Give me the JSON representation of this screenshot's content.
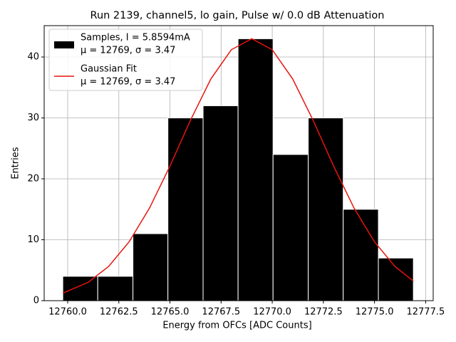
{
  "chart_data": {
    "type": "histogram",
    "title": "Run 2139, channel5, lo gain, Pulse w/ 0.0 dB Attenuation",
    "xlabel": "Energy from OFCs [ADC Counts]",
    "ylabel": "Entries",
    "bins": [
      12759.76,
      12761.47,
      12763.19,
      12764.9,
      12766.62,
      12768.33,
      12770.04,
      12771.76,
      12773.47,
      12775.19,
      12776.9
    ],
    "series": [
      {
        "name": [
          "Samples, I = 5.8594mA",
          "μ = 12769, σ = 3.47"
        ],
        "color": "#000000",
        "edgecolor": "#ffffff",
        "values": [
          4,
          4,
          11,
          30,
          32,
          43,
          24,
          30,
          15,
          7
        ]
      },
      {
        "name": [
          "Gaussian Fit",
          "μ = 12769, σ = 3.47"
        ],
        "color": "#e8140e",
        "type": "line",
        "x": [
          12759.76,
          12761,
          12762,
          12763,
          12764,
          12765,
          12766,
          12767,
          12768,
          12769,
          12770,
          12771,
          12772,
          12773,
          12774,
          12775,
          12776,
          12776.9
        ],
        "values": [
          1.24,
          3.01,
          5.62,
          9.65,
          15.2,
          22.1,
          29.6,
          36.4,
          41.2,
          43,
          41.2,
          36.4,
          29.6,
          22.1,
          15.2,
          9.65,
          5.62,
          3.22
        ]
      }
    ],
    "xlim": [
      12758.85,
      12777.87
    ],
    "ylim": [
      0,
      45.15
    ],
    "xticks": [
      {
        "value": 12760,
        "label": "12760.0"
      },
      12762.5,
      {
        "value": 12765,
        "label": "12765.0"
      },
      12767.5,
      {
        "value": 12770,
        "label": "12770.0"
      },
      12772.5,
      {
        "value": 12775,
        "label": "12775.0"
      },
      12777.5
    ],
    "yticks": [
      0,
      10,
      20,
      30,
      40
    ],
    "grid": true,
    "legend": "upper-left"
  }
}
